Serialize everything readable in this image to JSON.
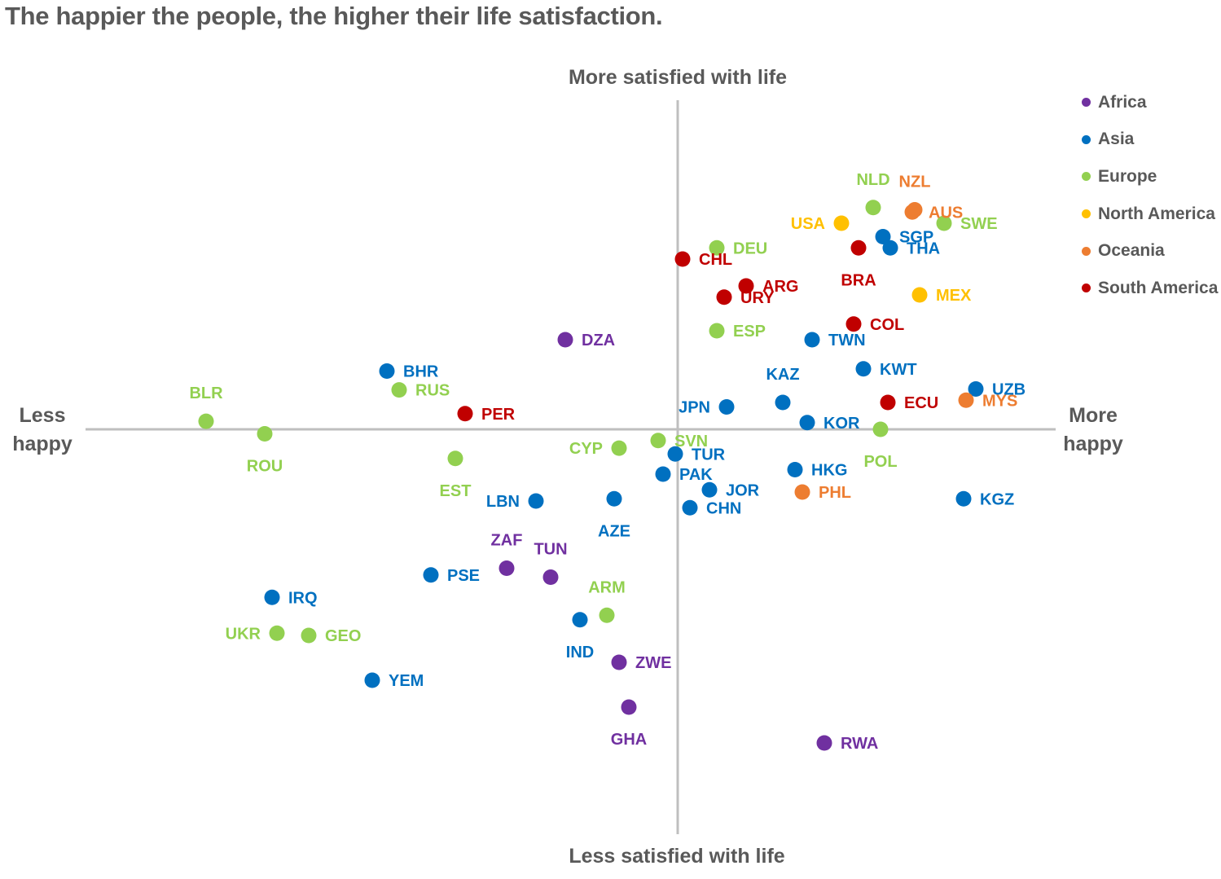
{
  "chart_data": {
    "type": "scatter",
    "title": "The happier the people, the higher their life satisfaction.",
    "xlabel_left": "Less happy",
    "xlabel_right": "More happy",
    "ylabel_top": "More satisfied with life",
    "ylabel_bottom": "Less satisfied with life",
    "xlim": [
      -12,
      8
    ],
    "ylim": [
      -9,
      8
    ],
    "grid": false,
    "legend_position": "top-right",
    "groups": [
      {
        "name": "Africa",
        "color": "#7030A0"
      },
      {
        "name": "Asia",
        "color": "#0070C0"
      },
      {
        "name": "Europe",
        "color": "#92D050"
      },
      {
        "name": "North America",
        "color": "#FFC000"
      },
      {
        "name": "Oceania",
        "color": "#ED7D31"
      },
      {
        "name": "South America",
        "color": "#C00000"
      }
    ],
    "points": [
      {
        "label": "DZA",
        "group": "Africa",
        "x": -2.3,
        "y": 2.0,
        "lpos": "right"
      },
      {
        "label": "ZAF",
        "group": "Africa",
        "x": -3.5,
        "y": -3.1,
        "lpos": "above"
      },
      {
        "label": "TUN",
        "group": "Africa",
        "x": -2.6,
        "y": -3.3,
        "lpos": "above"
      },
      {
        "label": "ZWE",
        "group": "Africa",
        "x": -1.2,
        "y": -5.2,
        "lpos": "right"
      },
      {
        "label": "GHA",
        "group": "Africa",
        "x": -1.0,
        "y": -6.2,
        "lpos": "below"
      },
      {
        "label": "RWA",
        "group": "Africa",
        "x": 3.0,
        "y": -7.0,
        "lpos": "right"
      },
      {
        "label": "BHR",
        "group": "Asia",
        "x": -5.95,
        "y": 1.3,
        "lpos": "right"
      },
      {
        "label": "JPN",
        "group": "Asia",
        "x": 1.0,
        "y": 0.5,
        "lpos": "left"
      },
      {
        "label": "KAZ",
        "group": "Asia",
        "x": 2.15,
        "y": 0.6,
        "lpos": "above"
      },
      {
        "label": "KOR",
        "group": "Asia",
        "x": 2.65,
        "y": 0.15,
        "lpos": "right"
      },
      {
        "label": "TWN",
        "group": "Asia",
        "x": 2.75,
        "y": 2.0,
        "lpos": "right"
      },
      {
        "label": "KWT",
        "group": "Asia",
        "x": 3.8,
        "y": 1.35,
        "lpos": "right"
      },
      {
        "label": "SGP",
        "group": "Asia",
        "x": 4.2,
        "y": 4.3,
        "lpos": "right"
      },
      {
        "label": "THA",
        "group": "Asia",
        "x": 4.35,
        "y": 4.05,
        "lpos": "right"
      },
      {
        "label": "UZB",
        "group": "Asia",
        "x": 6.1,
        "y": 0.9,
        "lpos": "right"
      },
      {
        "label": "TUR",
        "group": "Asia",
        "x": -0.05,
        "y": -0.55,
        "lpos": "right"
      },
      {
        "label": "PAK",
        "group": "Asia",
        "x": -0.3,
        "y": -1.0,
        "lpos": "right"
      },
      {
        "label": "JOR",
        "group": "Asia",
        "x": 0.65,
        "y": -1.35,
        "lpos": "right"
      },
      {
        "label": "CHN",
        "group": "Asia",
        "x": 0.25,
        "y": -1.75,
        "lpos": "right"
      },
      {
        "label": "HKG",
        "group": "Asia",
        "x": 2.4,
        "y": -0.9,
        "lpos": "right"
      },
      {
        "label": "KGZ",
        "group": "Asia",
        "x": 5.85,
        "y": -1.55,
        "lpos": "right"
      },
      {
        "label": "LBN",
        "group": "Asia",
        "x": -2.9,
        "y": -1.6,
        "lpos": "left"
      },
      {
        "label": "AZE",
        "group": "Asia",
        "x": -1.3,
        "y": -1.55,
        "lpos": "below"
      },
      {
        "label": "PSE",
        "group": "Asia",
        "x": -5.05,
        "y": -3.25,
        "lpos": "right"
      },
      {
        "label": "IRQ",
        "group": "Asia",
        "x": -8.3,
        "y": -3.75,
        "lpos": "right"
      },
      {
        "label": "IND",
        "group": "Asia",
        "x": -2.0,
        "y": -4.25,
        "lpos": "below"
      },
      {
        "label": "YEM",
        "group": "Asia",
        "x": -6.25,
        "y": -5.6,
        "lpos": "right"
      },
      {
        "label": "NLD",
        "group": "Europe",
        "x": 4.0,
        "y": 4.95,
        "lpos": "above"
      },
      {
        "label": "SWE",
        "group": "Europe",
        "x": 5.45,
        "y": 4.6,
        "lpos": "right"
      },
      {
        "label": "DEU",
        "group": "Europe",
        "x": 0.8,
        "y": 4.05,
        "lpos": "right"
      },
      {
        "label": "ESP",
        "group": "Europe",
        "x": 0.8,
        "y": 2.2,
        "lpos": "right"
      },
      {
        "label": "BLR",
        "group": "Europe",
        "x": -9.65,
        "y": 0.18,
        "lpos": "above"
      },
      {
        "label": "RUS",
        "group": "Europe",
        "x": -5.7,
        "y": 0.88,
        "lpos": "right"
      },
      {
        "label": "ROU",
        "group": "Europe",
        "x": -8.45,
        "y": -0.1,
        "lpos": "below"
      },
      {
        "label": "EST",
        "group": "Europe",
        "x": -4.55,
        "y": -0.65,
        "lpos": "below"
      },
      {
        "label": "CYP",
        "group": "Europe",
        "x": -1.2,
        "y": -0.42,
        "lpos": "left"
      },
      {
        "label": "SVN",
        "group": "Europe",
        "x": -0.4,
        "y": -0.25,
        "lpos": "right"
      },
      {
        "label": "POL",
        "group": "Europe",
        "x": 4.15,
        "y": 0.0,
        "lpos": "below"
      },
      {
        "label": "ARM",
        "group": "Europe",
        "x": -1.45,
        "y": -4.15,
        "lpos": "above"
      },
      {
        "label": "UKR",
        "group": "Europe",
        "x": -8.2,
        "y": -4.55,
        "lpos": "left"
      },
      {
        "label": "GEO",
        "group": "Europe",
        "x": -7.55,
        "y": -4.6,
        "lpos": "right"
      },
      {
        "label": "USA",
        "group": "North America",
        "x": 3.35,
        "y": 4.6,
        "lpos": "left"
      },
      {
        "label": "MEX",
        "group": "North America",
        "x": 4.95,
        "y": 3.0,
        "lpos": "right"
      },
      {
        "label": "NZL",
        "group": "Oceania",
        "x": 4.85,
        "y": 4.9,
        "lpos": "above"
      },
      {
        "label": "AUS",
        "group": "Oceania",
        "x": 4.8,
        "y": 4.85,
        "lpos": "right"
      },
      {
        "label": "MYS",
        "group": "Oceania",
        "x": 5.9,
        "y": 0.65,
        "lpos": "right"
      },
      {
        "label": "PHL",
        "group": "Oceania",
        "x": 2.55,
        "y": -1.4,
        "lpos": "right"
      },
      {
        "label": "CHL",
        "group": "South America",
        "x": 0.1,
        "y": 3.8,
        "lpos": "right"
      },
      {
        "label": "BRA",
        "group": "South America",
        "x": 3.7,
        "y": 4.05,
        "lpos": "below"
      },
      {
        "label": "ARG",
        "group": "South America",
        "x": 1.4,
        "y": 3.2,
        "lpos": "right"
      },
      {
        "label": "URY",
        "group": "South America",
        "x": 0.95,
        "y": 2.95,
        "lpos": "right"
      },
      {
        "label": "COL",
        "group": "South America",
        "x": 3.6,
        "y": 2.35,
        "lpos": "right"
      },
      {
        "label": "ECU",
        "group": "South America",
        "x": 4.3,
        "y": 0.6,
        "lpos": "right"
      },
      {
        "label": "PER",
        "group": "South America",
        "x": -4.35,
        "y": 0.35,
        "lpos": "right"
      }
    ]
  }
}
